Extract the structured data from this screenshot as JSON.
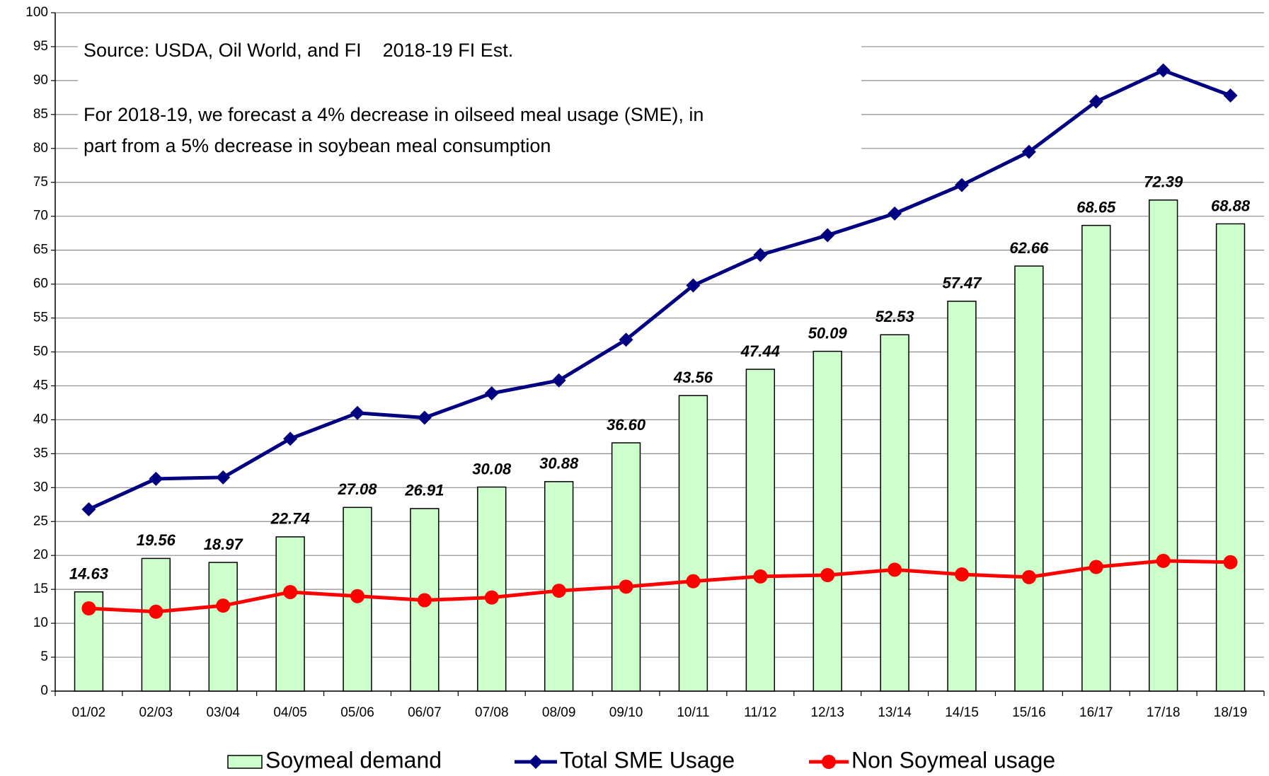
{
  "chart_data": {
    "type": "bar",
    "annotations": [
      "Source: USDA, Oil World, and FI    2018-19 FI Est.",
      "For 2018-19, we forecast a 4% decrease in oilseed meal usage (SME), in",
      "part from a 5% decrease in soybean meal consumption"
    ],
    "categories": [
      "01/02",
      "02/03",
      "03/04",
      "04/05",
      "05/06",
      "06/07",
      "07/08",
      "08/09",
      "09/10",
      "10/11",
      "11/12",
      "12/13",
      "13/14",
      "14/15",
      "15/16",
      "16/17",
      "17/18",
      "18/19"
    ],
    "series": [
      {
        "name": "Soymeal demand",
        "type": "bar",
        "color": "#ccffcc",
        "values": [
          14.63,
          19.56,
          18.97,
          22.74,
          27.08,
          26.91,
          30.08,
          30.88,
          36.6,
          43.56,
          47.44,
          50.09,
          52.53,
          57.47,
          62.66,
          68.65,
          72.39,
          68.88
        ],
        "value_labels": [
          "14.63",
          "19.56",
          "18.97",
          "22.74",
          "27.08",
          "26.91",
          "30.08",
          "30.88",
          "36.60",
          "43.56",
          "47.44",
          "50.09",
          "52.53",
          "57.47",
          "62.66",
          "68.65",
          "72.39",
          "68.88"
        ]
      },
      {
        "name": "Total SME Usage",
        "type": "line",
        "marker": "diamond",
        "color": "#000080",
        "values": [
          26.8,
          31.3,
          31.5,
          37.2,
          41.0,
          40.3,
          43.9,
          45.8,
          51.8,
          59.8,
          64.3,
          67.2,
          70.4,
          74.6,
          79.5,
          86.9,
          91.5,
          87.8
        ]
      },
      {
        "name": "Non Soymeal usage",
        "type": "line",
        "marker": "circle",
        "color": "#ff0000",
        "values": [
          12.2,
          11.7,
          12.6,
          14.6,
          14.0,
          13.4,
          13.8,
          14.8,
          15.4,
          16.2,
          16.9,
          17.1,
          17.9,
          17.2,
          16.8,
          18.3,
          19.2,
          19.0
        ]
      }
    ],
    "ylim": [
      0,
      100
    ],
    "yticks": [
      0,
      5,
      10,
      15,
      20,
      25,
      30,
      35,
      40,
      45,
      50,
      55,
      60,
      65,
      70,
      75,
      80,
      85,
      90,
      95,
      100
    ],
    "grid": true
  }
}
